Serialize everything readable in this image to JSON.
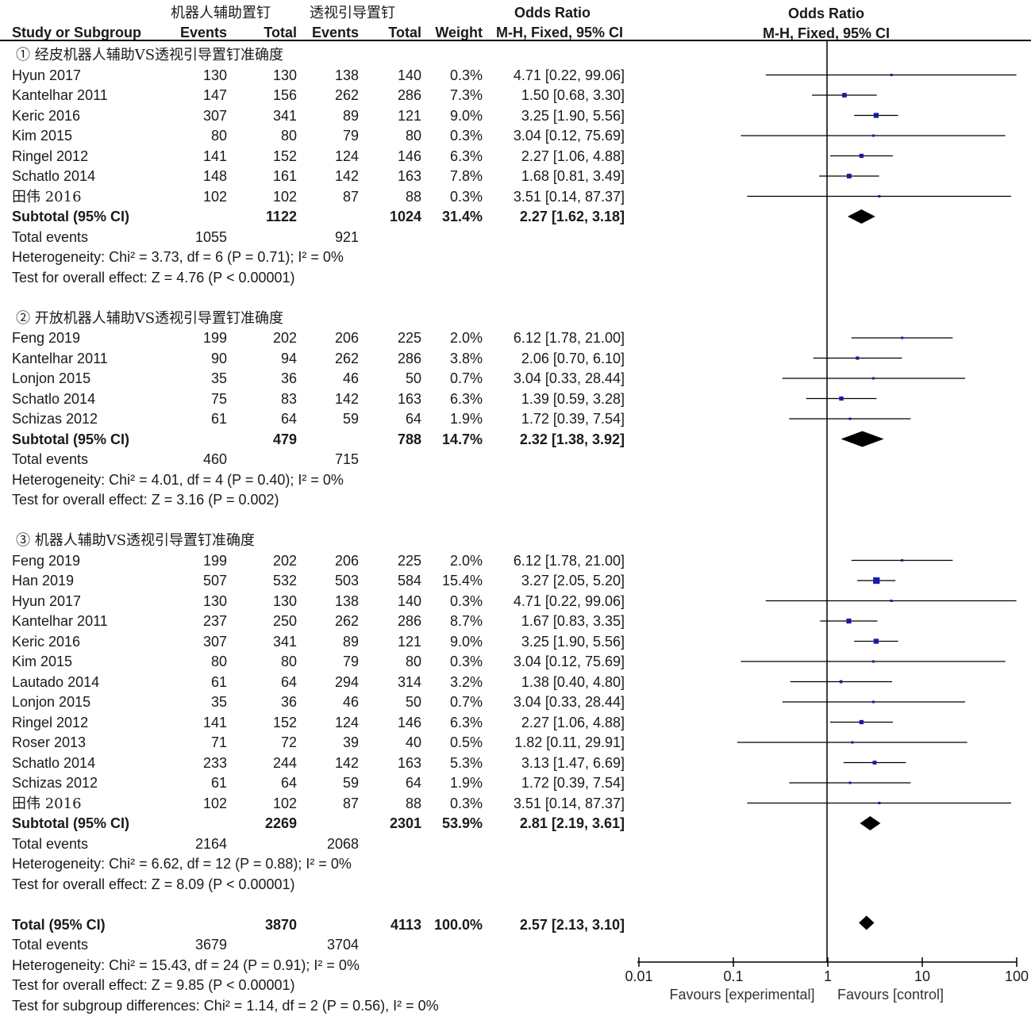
{
  "header": {
    "group1": "机器人辅助置钉",
    "group2": "透视引导置钉",
    "or_top_left": "Odds Ratio",
    "or_top_right": "Odds Ratio",
    "study": "Study or Subgroup",
    "events1": "Events",
    "total1": "Total",
    "events2": "Events",
    "total2": "Total",
    "weight": "Weight",
    "mh_left": "M-H, Fixed, 95% CI",
    "mh_right": "M-H, Fixed, 95% CI"
  },
  "chart_data": {
    "type": "forest",
    "x_scale": "log",
    "x_ticks": [
      "0.01",
      "0.1",
      "1",
      "10",
      "100"
    ],
    "x_tick_values": [
      0.01,
      0.1,
      1,
      10,
      100
    ],
    "xlim": [
      0.01,
      100
    ],
    "null_line": 1,
    "favours_left": "Favours [experimental]",
    "favours_right": "Favours [control]",
    "subgroups": [
      {
        "title": "① 经皮机器人辅助VS透视引导置钉准确度",
        "studies": [
          {
            "study": "Hyun 2017",
            "e1": "130",
            "t1": "130",
            "e2": "138",
            "t2": "140",
            "weight": "0.3%",
            "ci_text": "4.71 [0.22, 99.06]",
            "or": 4.71,
            "lo": 0.22,
            "hi": 99.06
          },
          {
            "study": "Kantelhar 2011",
            "e1": "147",
            "t1": "156",
            "e2": "262",
            "t2": "286",
            "weight": "7.3%",
            "ci_text": "1.50 [0.68, 3.30]",
            "or": 1.5,
            "lo": 0.68,
            "hi": 3.3
          },
          {
            "study": "Keric 2016",
            "e1": "307",
            "t1": "341",
            "e2": "89",
            "t2": "121",
            "weight": "9.0%",
            "ci_text": "3.25 [1.90, 5.56]",
            "or": 3.25,
            "lo": 1.9,
            "hi": 5.56
          },
          {
            "study": "Kim 2015",
            "e1": "80",
            "t1": "80",
            "e2": "79",
            "t2": "80",
            "weight": "0.3%",
            "ci_text": "3.04 [0.12, 75.69]",
            "or": 3.04,
            "lo": 0.12,
            "hi": 75.69
          },
          {
            "study": "Ringel 2012",
            "e1": "141",
            "t1": "152",
            "e2": "124",
            "t2": "146",
            "weight": "6.3%",
            "ci_text": "2.27 [1.06, 4.88]",
            "or": 2.27,
            "lo": 1.06,
            "hi": 4.88
          },
          {
            "study": "Schatlo 2014",
            "e1": "148",
            "t1": "161",
            "e2": "142",
            "t2": "163",
            "weight": "7.8%",
            "ci_text": "1.68 [0.81, 3.49]",
            "or": 1.68,
            "lo": 0.81,
            "hi": 3.49
          },
          {
            "study": "田伟 2016",
            "e1": "102",
            "t1": "102",
            "e2": "87",
            "t2": "88",
            "weight": "0.3%",
            "ci_text": "3.51 [0.14, 87.37]",
            "or": 3.51,
            "lo": 0.14,
            "hi": 87.37
          }
        ],
        "subtotal": {
          "label": "Subtotal (95% CI)",
          "t1": "1122",
          "t2": "1024",
          "weight": "31.4%",
          "ci_text": "2.27 [1.62, 3.18]",
          "or": 2.27,
          "lo": 1.62,
          "hi": 3.18
        },
        "events": {
          "label": "Total events",
          "e1": "1055",
          "e2": "921"
        },
        "heterogeneity": "Heterogeneity: Chi² = 3.73, df = 6 (P = 0.71); I² = 0%",
        "overall": "Test for overall effect: Z = 4.76 (P < 0.00001)"
      },
      {
        "title": "② 开放机器人辅助VS透视引导置钉准确度",
        "studies": [
          {
            "study": "Feng 2019",
            "e1": "199",
            "t1": "202",
            "e2": "206",
            "t2": "225",
            "weight": "2.0%",
            "ci_text": "6.12 [1.78, 21.00]",
            "or": 6.12,
            "lo": 1.78,
            "hi": 21.0
          },
          {
            "study": "Kantelhar 2011",
            "e1": "90",
            "t1": "94",
            "e2": "262",
            "t2": "286",
            "weight": "3.8%",
            "ci_text": "2.06 [0.70, 6.10]",
            "or": 2.06,
            "lo": 0.7,
            "hi": 6.1
          },
          {
            "study": "Lonjon 2015",
            "e1": "35",
            "t1": "36",
            "e2": "46",
            "t2": "50",
            "weight": "0.7%",
            "ci_text": "3.04 [0.33, 28.44]",
            "or": 3.04,
            "lo": 0.33,
            "hi": 28.44
          },
          {
            "study": "Schatlo 2014",
            "e1": "75",
            "t1": "83",
            "e2": "142",
            "t2": "163",
            "weight": "6.3%",
            "ci_text": "1.39 [0.59, 3.28]",
            "or": 1.39,
            "lo": 0.59,
            "hi": 3.28
          },
          {
            "study": "Schizas 2012",
            "e1": "61",
            "t1": "64",
            "e2": "59",
            "t2": "64",
            "weight": "1.9%",
            "ci_text": "1.72 [0.39, 7.54]",
            "or": 1.72,
            "lo": 0.39,
            "hi": 7.54
          }
        ],
        "subtotal": {
          "label": "Subtotal (95% CI)",
          "t1": "479",
          "t2": "788",
          "weight": "14.7%",
          "ci_text": "2.32 [1.38, 3.92]",
          "or": 2.32,
          "lo": 1.38,
          "hi": 3.92
        },
        "events": {
          "label": "Total events",
          "e1": "460",
          "e2": "715"
        },
        "heterogeneity": "Heterogeneity: Chi² = 4.01, df = 4 (P = 0.40); I² = 0%",
        "overall": "Test for overall effect: Z = 3.16 (P = 0.002)"
      },
      {
        "title": "③ 机器人辅助VS透视引导置钉准确度",
        "studies": [
          {
            "study": "Feng 2019",
            "e1": "199",
            "t1": "202",
            "e2": "206",
            "t2": "225",
            "weight": "2.0%",
            "ci_text": "6.12 [1.78, 21.00]",
            "or": 6.12,
            "lo": 1.78,
            "hi": 21.0
          },
          {
            "study": "Han 2019",
            "e1": "507",
            "t1": "532",
            "e2": "503",
            "t2": "584",
            "weight": "15.4%",
            "ci_text": "3.27 [2.05, 5.20]",
            "or": 3.27,
            "lo": 2.05,
            "hi": 5.2
          },
          {
            "study": "Hyun 2017",
            "e1": "130",
            "t1": "130",
            "e2": "138",
            "t2": "140",
            "weight": "0.3%",
            "ci_text": "4.71 [0.22, 99.06]",
            "or": 4.71,
            "lo": 0.22,
            "hi": 99.06
          },
          {
            "study": "Kantelhar 2011",
            "e1": "237",
            "t1": "250",
            "e2": "262",
            "t2": "286",
            "weight": "8.7%",
            "ci_text": "1.67 [0.83, 3.35]",
            "or": 1.67,
            "lo": 0.83,
            "hi": 3.35
          },
          {
            "study": "Keric 2016",
            "e1": "307",
            "t1": "341",
            "e2": "89",
            "t2": "121",
            "weight": "9.0%",
            "ci_text": "3.25 [1.90, 5.56]",
            "or": 3.25,
            "lo": 1.9,
            "hi": 5.56
          },
          {
            "study": "Kim 2015",
            "e1": "80",
            "t1": "80",
            "e2": "79",
            "t2": "80",
            "weight": "0.3%",
            "ci_text": "3.04 [0.12, 75.69]",
            "or": 3.04,
            "lo": 0.12,
            "hi": 75.69
          },
          {
            "study": "Lautado 2014",
            "e1": "61",
            "t1": "64",
            "e2": "294",
            "t2": "314",
            "weight": "3.2%",
            "ci_text": "1.38 [0.40, 4.80]",
            "or": 1.38,
            "lo": 0.4,
            "hi": 4.8
          },
          {
            "study": "Lonjon 2015",
            "e1": "35",
            "t1": "36",
            "e2": "46",
            "t2": "50",
            "weight": "0.7%",
            "ci_text": "3.04 [0.33, 28.44]",
            "or": 3.04,
            "lo": 0.33,
            "hi": 28.44
          },
          {
            "study": "Ringel 2012",
            "e1": "141",
            "t1": "152",
            "e2": "124",
            "t2": "146",
            "weight": "6.3%",
            "ci_text": "2.27 [1.06, 4.88]",
            "or": 2.27,
            "lo": 1.06,
            "hi": 4.88
          },
          {
            "study": "Roser 2013",
            "e1": "71",
            "t1": "72",
            "e2": "39",
            "t2": "40",
            "weight": "0.5%",
            "ci_text": "1.82 [0.11, 29.91]",
            "or": 1.82,
            "lo": 0.11,
            "hi": 29.91
          },
          {
            "study": "Schatlo 2014",
            "e1": "233",
            "t1": "244",
            "e2": "142",
            "t2": "163",
            "weight": "5.3%",
            "ci_text": "3.13 [1.47, 6.69]",
            "or": 3.13,
            "lo": 1.47,
            "hi": 6.69
          },
          {
            "study": "Schizas 2012",
            "e1": "61",
            "t1": "64",
            "e2": "59",
            "t2": "64",
            "weight": "1.9%",
            "ci_text": "1.72 [0.39, 7.54]",
            "or": 1.72,
            "lo": 0.39,
            "hi": 7.54
          },
          {
            "study": "田伟 2016",
            "e1": "102",
            "t1": "102",
            "e2": "87",
            "t2": "88",
            "weight": "0.3%",
            "ci_text": "3.51 [0.14, 87.37]",
            "or": 3.51,
            "lo": 0.14,
            "hi": 87.37
          }
        ],
        "subtotal": {
          "label": "Subtotal (95% CI)",
          "t1": "2269",
          "t2": "2301",
          "weight": "53.9%",
          "ci_text": "2.81 [2.19, 3.61]",
          "or": 2.81,
          "lo": 2.19,
          "hi": 3.61
        },
        "events": {
          "label": "Total events",
          "e1": "2164",
          "e2": "2068"
        },
        "heterogeneity": "Heterogeneity: Chi² = 6.62, df = 12 (P = 0.88); I² = 0%",
        "overall": "Test for overall effect: Z = 8.09 (P < 0.00001)"
      }
    ],
    "total": {
      "label": "Total (95% CI)",
      "t1": "3870",
      "t2": "4113",
      "weight": "100.0%",
      "ci_text": "2.57 [2.13, 3.10]",
      "or": 2.57,
      "lo": 2.13,
      "hi": 3.1,
      "events": {
        "label": "Total events",
        "e1": "3679",
        "e2": "3704"
      },
      "heterogeneity": "Heterogeneity: Chi² = 15.43, df = 24 (P = 0.91); I² = 0%",
      "overall": "Test for overall effect: Z = 9.85 (P < 0.00001)",
      "subgroup_diff": "Test for subgroup differences: Chi² = 1.14, df = 2 (P = 0.56), I² = 0%"
    },
    "colors": {
      "square": "#1a1aa8",
      "line": "#000000",
      "diamond": "#000000"
    }
  }
}
